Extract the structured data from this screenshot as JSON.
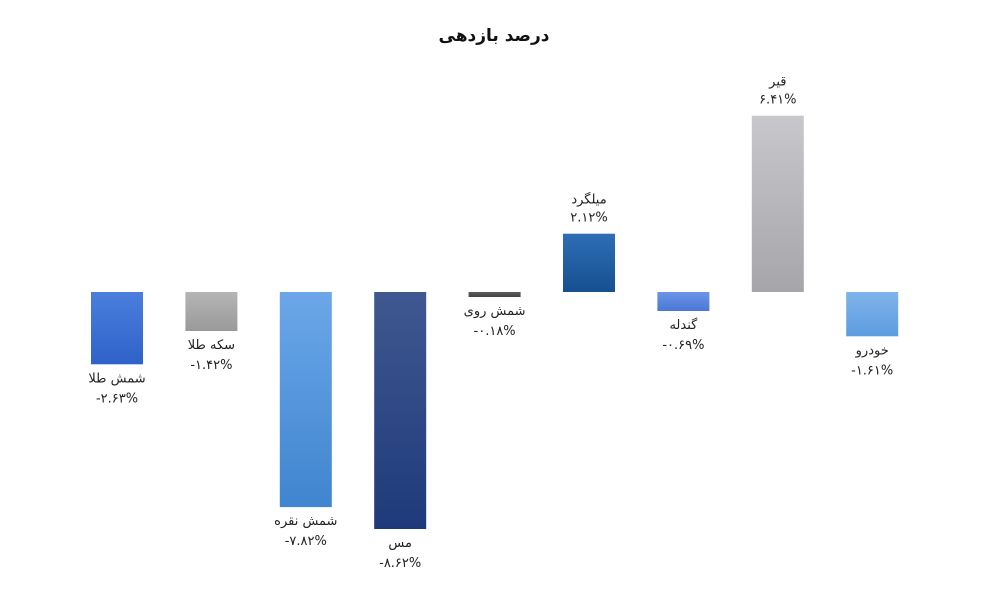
{
  "chart_data": {
    "type": "bar",
    "title": "درصد بازدهی",
    "categories": [
      "شمش طلا",
      "سکه طلا",
      "شمش نقره",
      "مس",
      "شمش روی",
      "میلگرد",
      "گندله",
      "قیر",
      "خودرو"
    ],
    "values": [
      -2.63,
      -1.42,
      -7.82,
      -8.62,
      -0.18,
      2.12,
      -0.69,
      6.41,
      -1.61
    ],
    "value_labels": [
      "-۲.۶۳%",
      "-۱.۴۲%",
      "-۷.۸۲%",
      "-۸.۶۲%",
      "-۰.۱۸%",
      "۲.۱۲%",
      "-۰.۶۹%",
      "۶.۴۱%",
      "-۱.۶۱%"
    ],
    "colors": [
      [
        "#4a7fdc",
        "#2f62c8"
      ],
      [
        "#b5b5b5",
        "#9a9a9a"
      ],
      [
        "#6ba7e8",
        "#3f85cf"
      ],
      [
        "#3f5891",
        "#1e3a7a"
      ],
      [
        "#5c5c5c",
        "#444444"
      ],
      [
        "#2f6db5",
        "#15508f"
      ],
      [
        "#6b95e6",
        "#4a78d6"
      ],
      [
        "#c8c8cc",
        "#a6a6aa"
      ],
      [
        "#7fb4ea",
        "#5e9ce0"
      ]
    ],
    "ylim": [
      -8.62,
      6.41
    ],
    "grid": false,
    "legend": "none"
  }
}
